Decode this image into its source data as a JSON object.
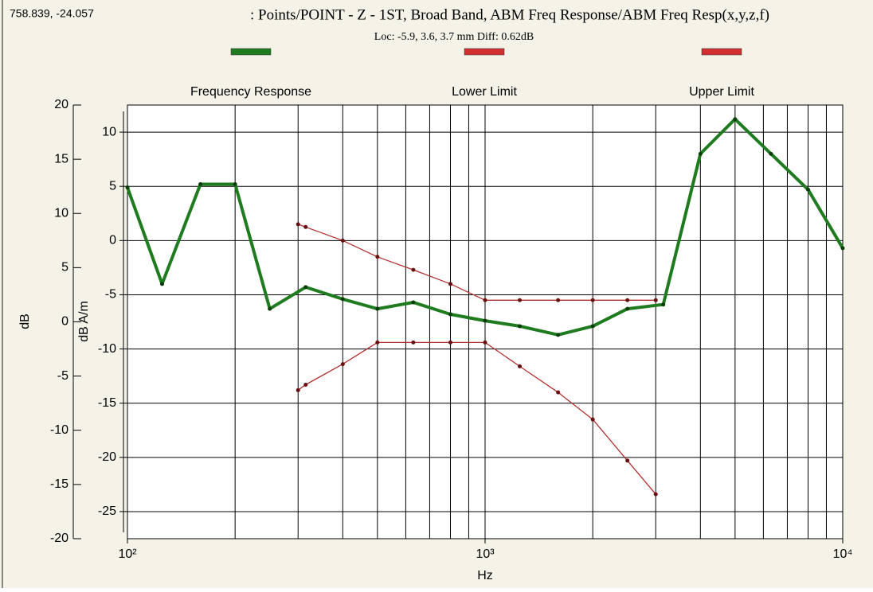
{
  "cursor_readout": "758.839, -24.057",
  "chart_data": {
    "type": "line",
    "title": ": Points/POINT - Z - 1ST, Broad Band, ABM Freq Response/ABM Freq Resp(x,y,z,f)",
    "subtitle": "Loc: -5.9, 3.6, 3.7 mm Diff: 0.62dB",
    "xlabel": "Hz",
    "ylabel": "dB A/m",
    "y2label": "dB",
    "xscale": "log",
    "xlim": [
      100,
      10000
    ],
    "xticks": [
      {
        "value": 100,
        "label": "10²"
      },
      {
        "value": 1000,
        "label": "10³"
      },
      {
        "value": 10000,
        "label": "10⁴"
      }
    ],
    "xminor_ticks": [
      200,
      300,
      400,
      500,
      600,
      700,
      800,
      900,
      2000,
      3000,
      4000,
      5000,
      6000,
      7000,
      8000,
      9000
    ],
    "ylim": [
      -27.5,
      12.5
    ],
    "yticks": [
      10,
      5,
      0,
      -5,
      -10,
      -15,
      -20,
      -25
    ],
    "y2lim": [
      -20,
      20
    ],
    "y2ticks": [
      20,
      15,
      10,
      5,
      0,
      -5,
      -10,
      -15,
      -20
    ],
    "grid": true,
    "legend": "top",
    "series": [
      {
        "name": "Frequency Response",
        "color": "#1e7b1e",
        "x": [
          100,
          125,
          160,
          200,
          250,
          315,
          400,
          500,
          630,
          800,
          1000,
          1250,
          1600,
          2000,
          2500,
          3150,
          4000,
          5000,
          6300,
          8000,
          10000
        ],
        "values": [
          4.9,
          -4.0,
          5.2,
          5.2,
          -6.3,
          -4.3,
          -5.4,
          -6.3,
          -5.7,
          -6.8,
          -7.4,
          -7.9,
          -8.7,
          -7.9,
          -6.3,
          -5.9,
          8.0,
          11.2,
          8.0,
          4.7,
          -0.7
        ]
      },
      {
        "name": "Lower Limit",
        "color": "#b03030",
        "x": [
          300,
          315,
          400,
          500,
          630,
          800,
          1000,
          1250,
          1600,
          2000,
          2500,
          3000
        ],
        "values": [
          -13.8,
          -13.3,
          -11.4,
          -9.4,
          -9.4,
          -9.4,
          -9.4,
          -11.6,
          -14.0,
          -16.5,
          -20.3,
          -23.4
        ]
      },
      {
        "name": "Upper Limit",
        "color": "#b03030",
        "x": [
          300,
          315,
          400,
          500,
          630,
          800,
          1000,
          1250,
          1600,
          2000,
          2500,
          3000
        ],
        "values": [
          1.5,
          1.25,
          0,
          -1.5,
          -2.7,
          -4.0,
          -5.5,
          -5.5,
          -5.5,
          -5.5,
          -5.5,
          -5.5
        ]
      }
    ]
  }
}
